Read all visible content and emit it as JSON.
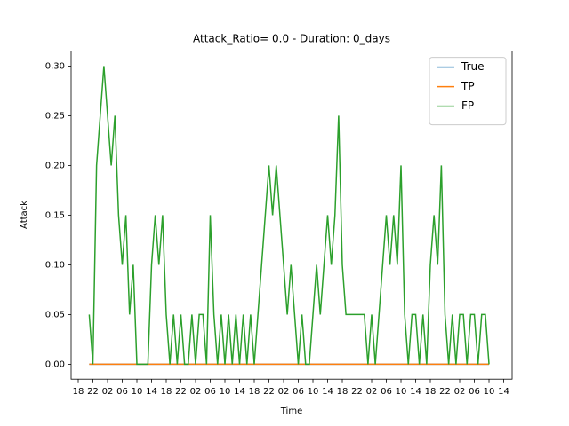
{
  "chart_data": {
    "type": "line",
    "title": "Attack_Ratio= 0.0 - Duration: 0_days",
    "x_label": "Time",
    "y_label": "Attack",
    "x": [
      3,
      4,
      5,
      6,
      7,
      8,
      9,
      10,
      11,
      12,
      13,
      14,
      15,
      16,
      17,
      18,
      19,
      20,
      21,
      22,
      23,
      24,
      25,
      26,
      27,
      28,
      29,
      30,
      31,
      32,
      33,
      34,
      35,
      36,
      37,
      38,
      39,
      40,
      41,
      42,
      43,
      44,
      45,
      46,
      47,
      48,
      49,
      50,
      51,
      52,
      53,
      54,
      55,
      56,
      57,
      58,
      59,
      60,
      61,
      62,
      63,
      64,
      65,
      66,
      67,
      68,
      69,
      70,
      71,
      72,
      73,
      74,
      75,
      76,
      77,
      78,
      79,
      80,
      81,
      82,
      83,
      84,
      85,
      86,
      87,
      88,
      89,
      90,
      91,
      92,
      93,
      94,
      95,
      96,
      97,
      98,
      99,
      100,
      101,
      102,
      103,
      104,
      105,
      106,
      107,
      108,
      109,
      110,
      111,
      112
    ],
    "series": [
      {
        "name": "True",
        "color": "#1f77b4",
        "values": [
          0,
          0,
          0,
          0,
          0,
          0,
          0,
          0,
          0,
          0,
          0,
          0,
          0,
          0,
          0,
          0,
          0,
          0,
          0,
          0,
          0,
          0,
          0,
          0,
          0,
          0,
          0,
          0,
          0,
          0,
          0,
          0,
          0,
          0,
          0,
          0,
          0,
          0,
          0,
          0,
          0,
          0,
          0,
          0,
          0,
          0,
          0,
          0,
          0,
          0,
          0,
          0,
          0,
          0,
          0,
          0,
          0,
          0,
          0,
          0,
          0,
          0,
          0,
          0,
          0,
          0,
          0,
          0,
          0,
          0,
          0,
          0,
          0,
          0,
          0,
          0,
          0,
          0,
          0,
          0,
          0,
          0,
          0,
          0,
          0,
          0,
          0,
          0,
          0,
          0,
          0,
          0,
          0,
          0,
          0,
          0,
          0,
          0,
          0,
          0,
          0,
          0,
          0,
          0,
          0,
          0,
          0,
          0,
          0,
          0
        ]
      },
      {
        "name": "TP",
        "color": "#ff7f0e",
        "values": [
          0,
          0,
          0,
          0,
          0,
          0,
          0,
          0,
          0,
          0,
          0,
          0,
          0,
          0,
          0,
          0,
          0,
          0,
          0,
          0,
          0,
          0,
          0,
          0,
          0,
          0,
          0,
          0,
          0,
          0,
          0,
          0,
          0,
          0,
          0,
          0,
          0,
          0,
          0,
          0,
          0,
          0,
          0,
          0,
          0,
          0,
          0,
          0,
          0,
          0,
          0,
          0,
          0,
          0,
          0,
          0,
          0,
          0,
          0,
          0,
          0,
          0,
          0,
          0,
          0,
          0,
          0,
          0,
          0,
          0,
          0,
          0,
          0,
          0,
          0,
          0,
          0,
          0,
          0,
          0,
          0,
          0,
          0,
          0,
          0,
          0,
          0,
          0,
          0,
          0,
          0,
          0,
          0,
          0,
          0,
          0,
          0,
          0,
          0,
          0,
          0,
          0,
          0,
          0,
          0,
          0,
          0,
          0,
          0,
          0
        ]
      },
      {
        "name": "FP",
        "color": "#2ca02c",
        "values": [
          0.05,
          0,
          0.2,
          0.25,
          0.3,
          0.25,
          0.2,
          0.25,
          0.15,
          0.1,
          0.15,
          0.05,
          0.1,
          0,
          0,
          0,
          0,
          0.1,
          0.15,
          0.1,
          0.15,
          0.05,
          0,
          0.05,
          0,
          0.05,
          0,
          0,
          0.05,
          0,
          0.05,
          0.05,
          0,
          0.15,
          0.05,
          0,
          0.05,
          0,
          0.05,
          0,
          0.05,
          0,
          0.05,
          0,
          0.05,
          0,
          0.05,
          0.1,
          0.15,
          0.2,
          0.15,
          0.2,
          0.15,
          0.1,
          0.05,
          0.1,
          0.05,
          0,
          0.05,
          0,
          0,
          0.05,
          0.1,
          0.05,
          0.1,
          0.15,
          0.1,
          0.15,
          0.25,
          0.1,
          0.05,
          0.05,
          0.05,
          0.05,
          0.05,
          0.05,
          0,
          0.05,
          0,
          0.05,
          0.1,
          0.15,
          0.1,
          0.15,
          0.1,
          0.2,
          0.05,
          0,
          0.05,
          0.05,
          0,
          0.05,
          0,
          0.1,
          0.15,
          0.1,
          0.2,
          0.05,
          0,
          0.05,
          0,
          0.05,
          0.05,
          0,
          0.05,
          0.05,
          0,
          0.05,
          0.05,
          0
        ]
      }
    ],
    "xlim": [
      -1.94,
      118.3
    ],
    "xticks": [
      {
        "value": 0,
        "label": "18"
      },
      {
        "value": 4,
        "label": "22"
      },
      {
        "value": 8,
        "label": "02"
      },
      {
        "value": 12,
        "label": "06"
      },
      {
        "value": 16,
        "label": "10"
      },
      {
        "value": 20,
        "label": "14"
      },
      {
        "value": 24,
        "label": "18"
      },
      {
        "value": 28,
        "label": "22"
      },
      {
        "value": 32,
        "label": "02"
      },
      {
        "value": 36,
        "label": "06"
      },
      {
        "value": 40,
        "label": "10"
      },
      {
        "value": 44,
        "label": "14"
      },
      {
        "value": 48,
        "label": "18"
      },
      {
        "value": 52,
        "label": "22"
      },
      {
        "value": 56,
        "label": "02"
      },
      {
        "value": 60,
        "label": "06"
      },
      {
        "value": 64,
        "label": "10"
      },
      {
        "value": 68,
        "label": "14"
      },
      {
        "value": 72,
        "label": "18"
      },
      {
        "value": 76,
        "label": "22"
      },
      {
        "value": 80,
        "label": "02"
      },
      {
        "value": 84,
        "label": "06"
      },
      {
        "value": 88,
        "label": "10"
      },
      {
        "value": 92,
        "label": "14"
      },
      {
        "value": 96,
        "label": "18"
      },
      {
        "value": 100,
        "label": "22"
      },
      {
        "value": 104,
        "label": "02"
      },
      {
        "value": 108,
        "label": "06"
      },
      {
        "value": 112,
        "label": "10"
      },
      {
        "value": 116,
        "label": "14"
      }
    ],
    "ylim": [
      -0.015,
      0.315
    ],
    "yticks": [
      {
        "value": 0,
        "label": "0.00"
      },
      {
        "value": 0.05,
        "label": "0.05"
      },
      {
        "value": 0.1,
        "label": "0.10"
      },
      {
        "value": 0.15,
        "label": "0.15"
      },
      {
        "value": 0.2,
        "label": "0.20"
      },
      {
        "value": 0.25,
        "label": "0.25"
      },
      {
        "value": 0.3,
        "label": "0.30"
      }
    ],
    "legend": "upper right"
  }
}
